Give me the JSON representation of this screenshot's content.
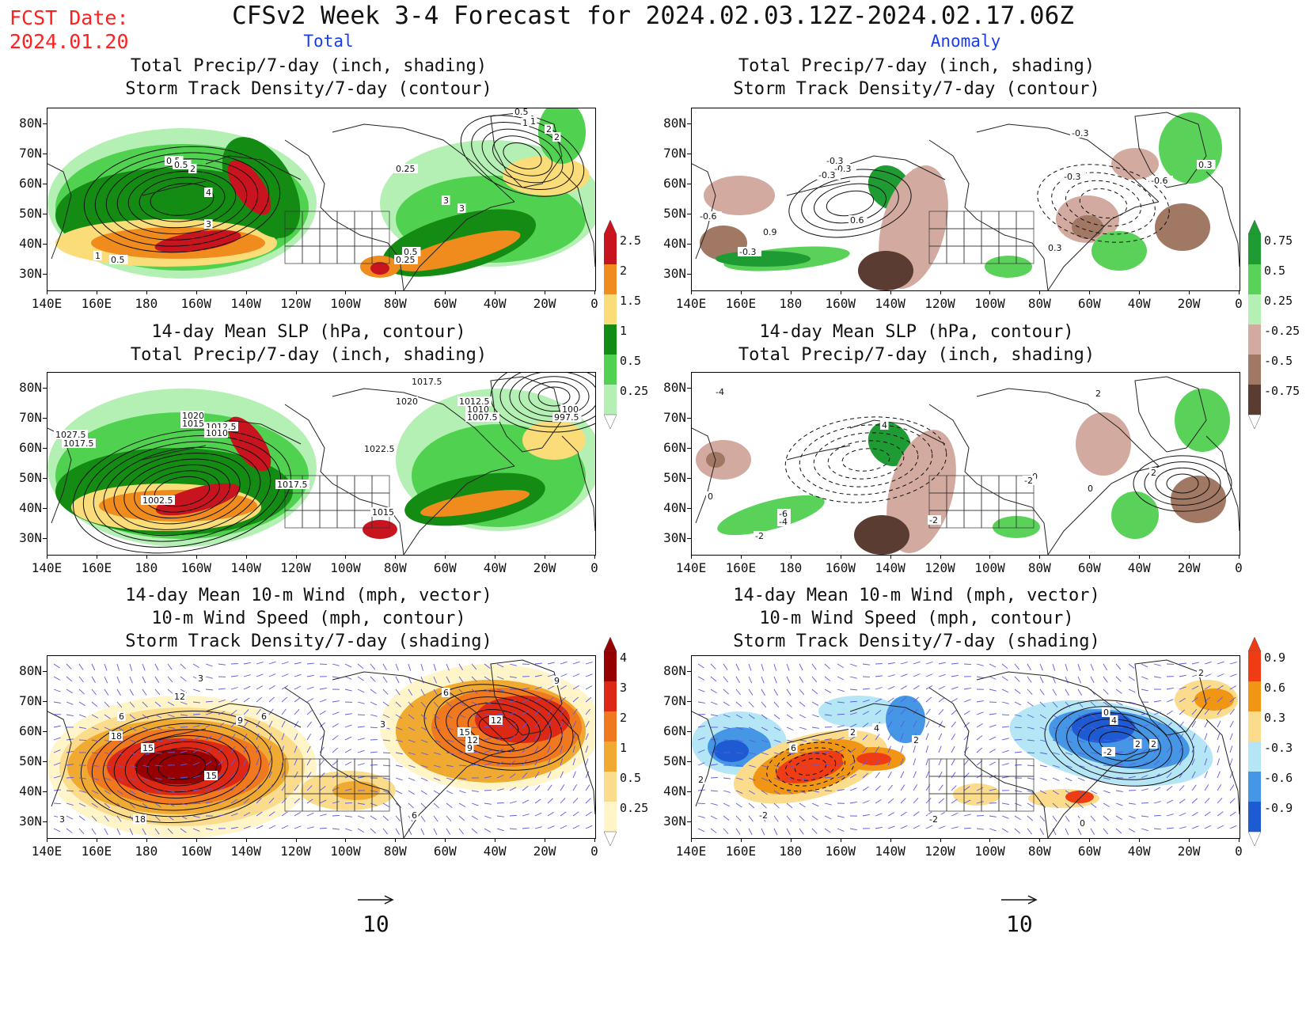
{
  "fcst_date": {
    "line1": "FCST Date:",
    "line2": "2024.01.20"
  },
  "title": "CFSv2 Week 3-4 Forecast for 2024.02.03.12Z-2024.02.17.06Z",
  "columns": {
    "left": "Total",
    "right": "Anomaly"
  },
  "panels": [
    {
      "id": "p1",
      "lines": [
        "Total Precip/7-day (inch, shading)",
        "Storm Track Density/7-day (contour)"
      ]
    },
    {
      "id": "p2",
      "lines": [
        "Total Precip/7-day (inch, shading)",
        "Storm Track Density/7-day (contour)"
      ]
    },
    {
      "id": "p3",
      "lines": [
        "14-day Mean SLP (hPa, contour)",
        "Total Precip/7-day (inch, shading)"
      ]
    },
    {
      "id": "p4",
      "lines": [
        "14-day Mean SLP (hPa, contour)",
        "Total Precip/7-day (inch, shading)"
      ]
    },
    {
      "id": "p5",
      "lines": [
        "14-day Mean 10-m Wind (mph, vector)",
        "10-m Wind Speed (mph, contour)",
        "Storm Track Density/7-day (shading)"
      ]
    },
    {
      "id": "p6",
      "lines": [
        "14-day Mean 10-m Wind (mph, vector)",
        "10-m Wind Speed (mph, contour)",
        "Storm Track Density/7-day (shading)"
      ]
    }
  ],
  "lat_labels": [
    "80N",
    "70N",
    "60N",
    "50N",
    "40N",
    "30N"
  ],
  "lon_labels": [
    "140E",
    "160E",
    "180",
    "160W",
    "140W",
    "120W",
    "100W",
    "80W",
    "60W",
    "40W",
    "20W",
    "0"
  ],
  "colorbars": {
    "precip_total": {
      "labels": [
        "2.5",
        "2",
        "1.5",
        "1",
        "0.5",
        "0.25"
      ],
      "colors": [
        "#c8141e",
        "#f08c1e",
        "#fadc78",
        "#148c14",
        "#50d250",
        "#b4f0b4"
      ]
    },
    "precip_anom": {
      "labels": [
        "0.75",
        "0.5",
        "0.25",
        "-0.25",
        "-0.5",
        "-0.75"
      ],
      "colors": [
        "#1e9b32",
        "#5ad25a",
        "#b4f0b4",
        "#d2aaa0",
        "#a07864",
        "#5a3c32"
      ]
    },
    "storm_total": {
      "labels": [
        "4",
        "3",
        "2",
        "1",
        "0.5",
        "0.25"
      ],
      "colors": [
        "#960000",
        "#dc2814",
        "#f0781e",
        "#f0aa32",
        "#fadc8c",
        "#fff5c8"
      ]
    },
    "storm_anom": {
      "labels": [
        "0.9",
        "0.6",
        "0.3",
        "-0.3",
        "-0.6",
        "-0.9"
      ],
      "colors": [
        "#f03c14",
        "#f09614",
        "#fadc8c",
        "#b4e6f5",
        "#4696e6",
        "#1e5ad2"
      ]
    }
  },
  "contour_labels": {
    "p1": [
      "0.5",
      "1",
      "2",
      "0.25",
      "0.5",
      "4",
      "3",
      "1",
      "0.5",
      "0.25",
      "0.5",
      "3",
      "3",
      "2",
      "0.5",
      "1",
      "2"
    ],
    "p2": [
      "-0.3",
      "-0.3",
      "-0.3",
      "-0.6",
      "0.9",
      "-0.3",
      "0.6",
      "-0.3",
      "-0.3",
      "-0.6",
      "0.3",
      "0.3"
    ],
    "p3": [
      "1017.5",
      "1020",
      "1015",
      "1012.5",
      "1010",
      "1007.5",
      "1027.5",
      "1017.5",
      "1002.5",
      "1017.5",
      "1015",
      "100",
      "997.5",
      "1012.5",
      "1010",
      "1020",
      "1022.5"
    ],
    "p4": [
      "-4",
      "4",
      "-2",
      "0",
      "2",
      "-6",
      "-4",
      "-2",
      "0",
      "2",
      "-2",
      "0"
    ],
    "p5": [
      "12",
      "3",
      "6",
      "18",
      "15",
      "15",
      "9",
      "6",
      "9",
      "6",
      "12",
      "15",
      "12",
      "9",
      "3",
      "3",
      "18",
      "6"
    ],
    "p6": [
      "2",
      "2",
      "4",
      "6",
      "-2",
      "2",
      "0",
      "4",
      "2",
      "-2",
      "0",
      "-2",
      "2",
      "2"
    ]
  },
  "ref_vector": {
    "label": "10"
  }
}
